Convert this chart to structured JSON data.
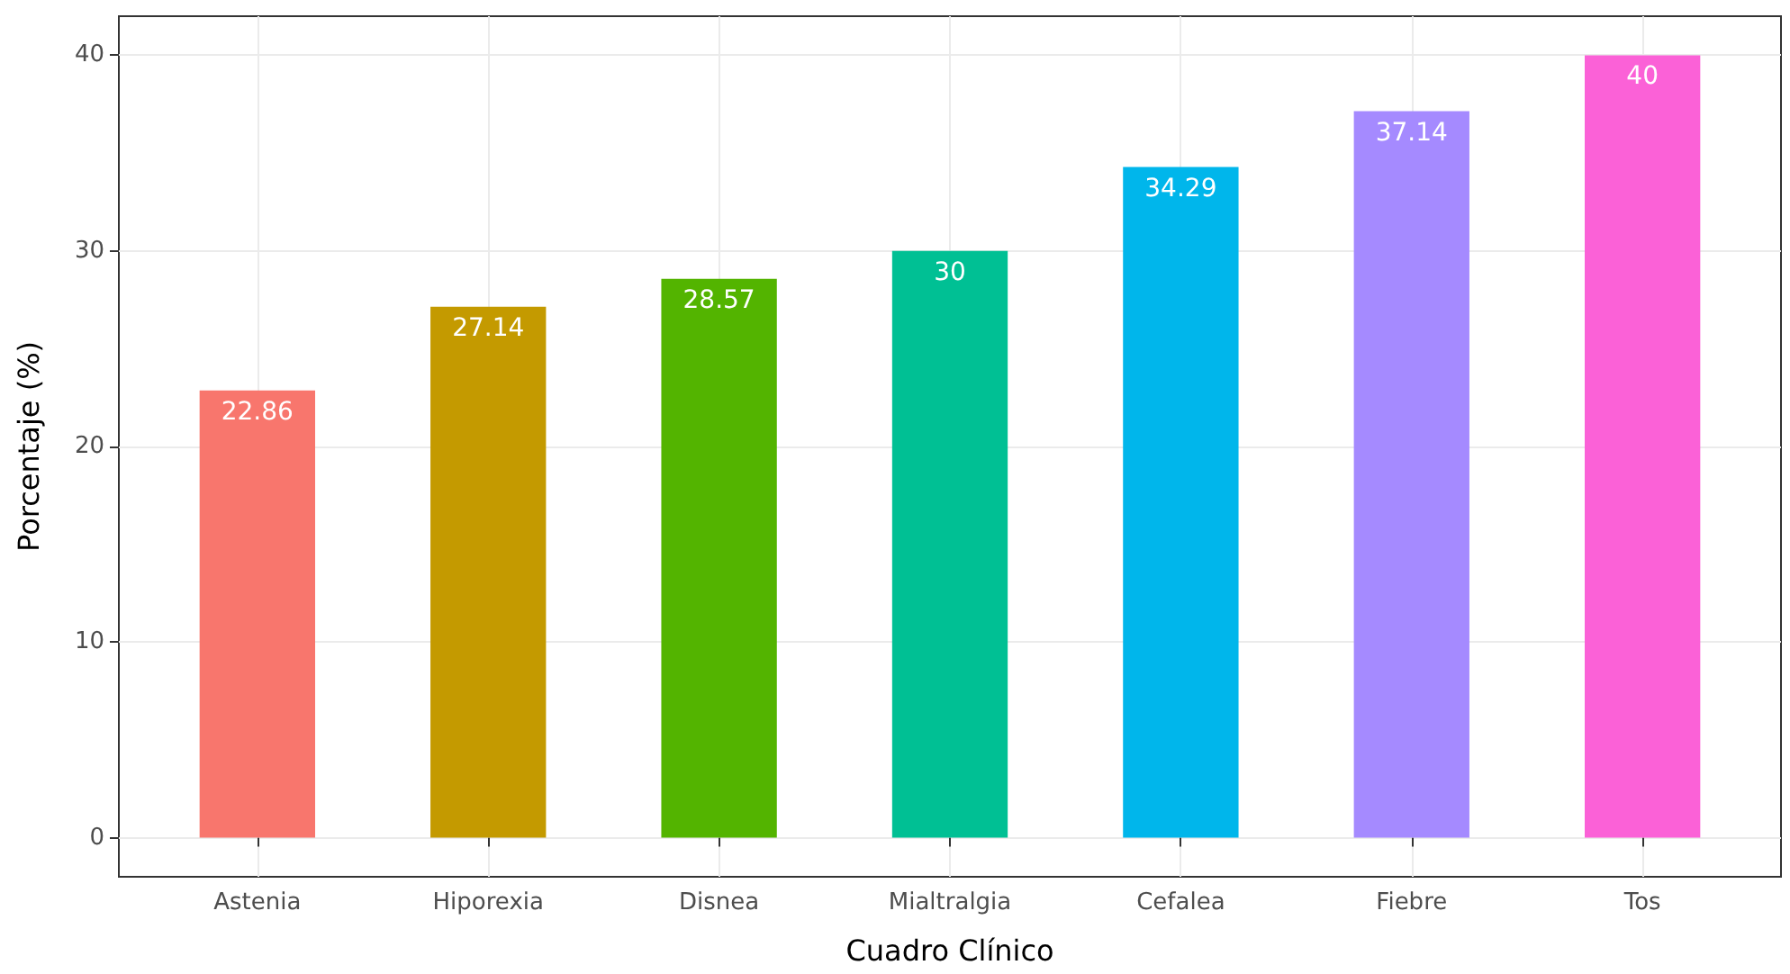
{
  "chart_data": {
    "type": "bar",
    "xlabel": "Cuadro Clínico",
    "ylabel": "Porcentaje (%)",
    "categories": [
      "Astenia",
      "Hiporexia",
      "Disnea",
      "Mialtralgia",
      "Cefalea",
      "Fiebre",
      "Tos"
    ],
    "values": [
      22.86,
      27.14,
      28.57,
      30,
      34.29,
      37.14,
      40
    ],
    "colors": [
      "#f8766d",
      "#c49a00",
      "#53b400",
      "#00c094",
      "#00b6eb",
      "#a58aff",
      "#fb61d7"
    ],
    "ylim": [
      -2,
      42
    ],
    "yticks": [
      0,
      10,
      20,
      30,
      40
    ],
    "grid": true,
    "data_labels": true
  }
}
